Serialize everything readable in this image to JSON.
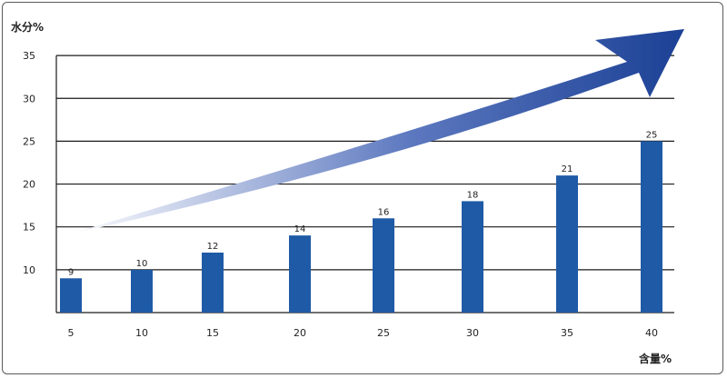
{
  "chart_data": {
    "type": "bar",
    "title": "",
    "ylabel": "水分%",
    "xlabel": "含量%",
    "categories": [
      "5",
      "10",
      "15",
      "20",
      "25",
      "30",
      "35",
      "40"
    ],
    "values": [
      9,
      10,
      12,
      14,
      16,
      18,
      21,
      25
    ],
    "y_ticks": [
      "10",
      "15",
      "20",
      "25",
      "30",
      "35"
    ],
    "ylim": [
      5,
      35
    ],
    "grid": "horizontal",
    "bar_color": "#1f5aa6",
    "arrow": {
      "shape": "rising-curved-arrow",
      "color_start": "#ffffff",
      "color_end": "#1a3f94"
    }
  }
}
